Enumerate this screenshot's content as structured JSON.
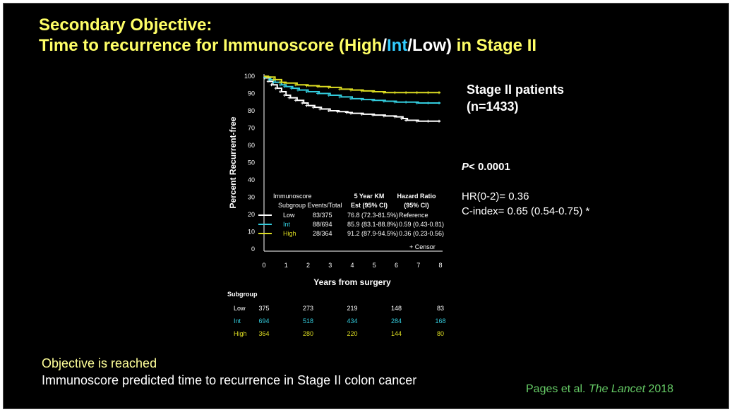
{
  "title": {
    "line1": "Secondary Objective:",
    "line2_prefix": "Time to recurrence for Immunoscore (",
    "high": "High",
    "slash1": "/",
    "int": "Int",
    "slash2": "/",
    "low_paren": "Low)",
    "line2_suffix": " in Stage II"
  },
  "side": {
    "patients_line1": "Stage II patients",
    "patients_line2": "(n=1433)",
    "p_label": "P",
    "p_value": "< 0.0001",
    "hr": "HR(0-2)= 0.36",
    "cindex": "C-index= 0.65 (0.54-0.75) *"
  },
  "footer": {
    "objective": "Objective is reached",
    "prediction": "Immunoscore predicted time to recurrence in Stage II colon cancer",
    "citation_authors": "Pages et al. ",
    "citation_journal": "The Lancet",
    "citation_year": "  2018"
  },
  "colors": {
    "low": "#ffffff",
    "int": "#33ccdd",
    "high": "#dddd22",
    "background": "#000000"
  },
  "chart_data": {
    "type": "line",
    "xlabel": "Years from surgery",
    "ylabel": "Percent Recurrent-free",
    "xlim": [
      0,
      8
    ],
    "ylim": [
      0,
      100
    ],
    "xticks": [
      "0",
      "1",
      "2",
      "3",
      "4",
      "5",
      "6",
      "7",
      "8"
    ],
    "yticks": [
      "0",
      "10",
      "20",
      "30",
      "40",
      "50",
      "60",
      "70",
      "80",
      "90",
      "100"
    ],
    "series": [
      {
        "name": "Low",
        "color": "#ffffff",
        "x": [
          0,
          0.1,
          0.25,
          0.4,
          0.6,
          0.8,
          1,
          1.2,
          1.5,
          1.8,
          2,
          2.3,
          2.6,
          3,
          3.4,
          3.8,
          4,
          4.5,
          5,
          5.5,
          6,
          6.3,
          6.5,
          7,
          7.5,
          8
        ],
        "y": [
          100,
          99,
          97,
          95,
          93,
          91,
          89,
          87.5,
          86,
          84.5,
          83,
          82,
          81,
          80,
          79.5,
          79,
          78.5,
          78,
          77.5,
          77,
          76.5,
          75.5,
          74.5,
          74,
          74,
          74
        ]
      },
      {
        "name": "Int",
        "color": "#33ccdd",
        "x": [
          0,
          0.1,
          0.3,
          0.5,
          0.8,
          1,
          1.3,
          1.6,
          2,
          2.5,
          3,
          3.5,
          4,
          4.5,
          5,
          5.5,
          6,
          6.5,
          7,
          7.5,
          8
        ],
        "y": [
          100,
          99.5,
          98,
          96.5,
          95,
          94,
          93,
          92,
          91,
          90,
          89,
          88,
          87,
          86.5,
          86,
          85.5,
          85,
          85,
          84.5,
          84.5,
          84.5
        ]
      },
      {
        "name": "High",
        "color": "#dddd22",
        "x": [
          0,
          0.2,
          0.5,
          0.8,
          1,
          1.5,
          2,
          2.5,
          3,
          3.5,
          4,
          4.5,
          5,
          5.5,
          6,
          6.5,
          7,
          7.5,
          8
        ],
        "y": [
          100,
          99.5,
          98,
          96.5,
          96,
          95,
          94.5,
          94,
          93.5,
          92.5,
          92,
          91.5,
          91,
          90.5,
          90.5,
          90.5,
          90.5,
          90.5,
          90.5
        ]
      }
    ],
    "legend": {
      "header_col1_line1": "Immunoscore",
      "header_col1_line2": "Subgroup Events/Total",
      "header_col2_line1": "5 Year KM",
      "header_col2_line2": "Est (95% CI)",
      "header_col3_line1": "Hazard Ratio",
      "header_col3_line2": "(95% CI)",
      "rows": [
        {
          "name": "Low",
          "color": "#ffffff",
          "events": "83/375",
          "km": "76.8 (72.3-81.5%)",
          "hr": "Reference"
        },
        {
          "name": "Int",
          "color": "#33ccdd",
          "events": "88/694",
          "km": "85.9 (83.1-88.8%)",
          "hr": "0.59 (0.43-0.81)"
        },
        {
          "name": "High",
          "color": "#dddd22",
          "events": "28/364",
          "km": "91.2 (87.9-94.5%)",
          "hr": "0.36 (0.23-0.56)"
        }
      ],
      "censor": "+ Censor"
    },
    "risk_table": {
      "header": "Subgroup",
      "rows": [
        {
          "name": "Low",
          "color": "#ffffff",
          "values": [
            "375",
            "273",
            "219",
            "148",
            "83"
          ]
        },
        {
          "name": "Int",
          "color": "#33ccdd",
          "values": [
            "694",
            "518",
            "434",
            "284",
            "168"
          ]
        },
        {
          "name": "High",
          "color": "#dddd22",
          "values": [
            "364",
            "280",
            "220",
            "144",
            "80"
          ]
        }
      ]
    }
  }
}
